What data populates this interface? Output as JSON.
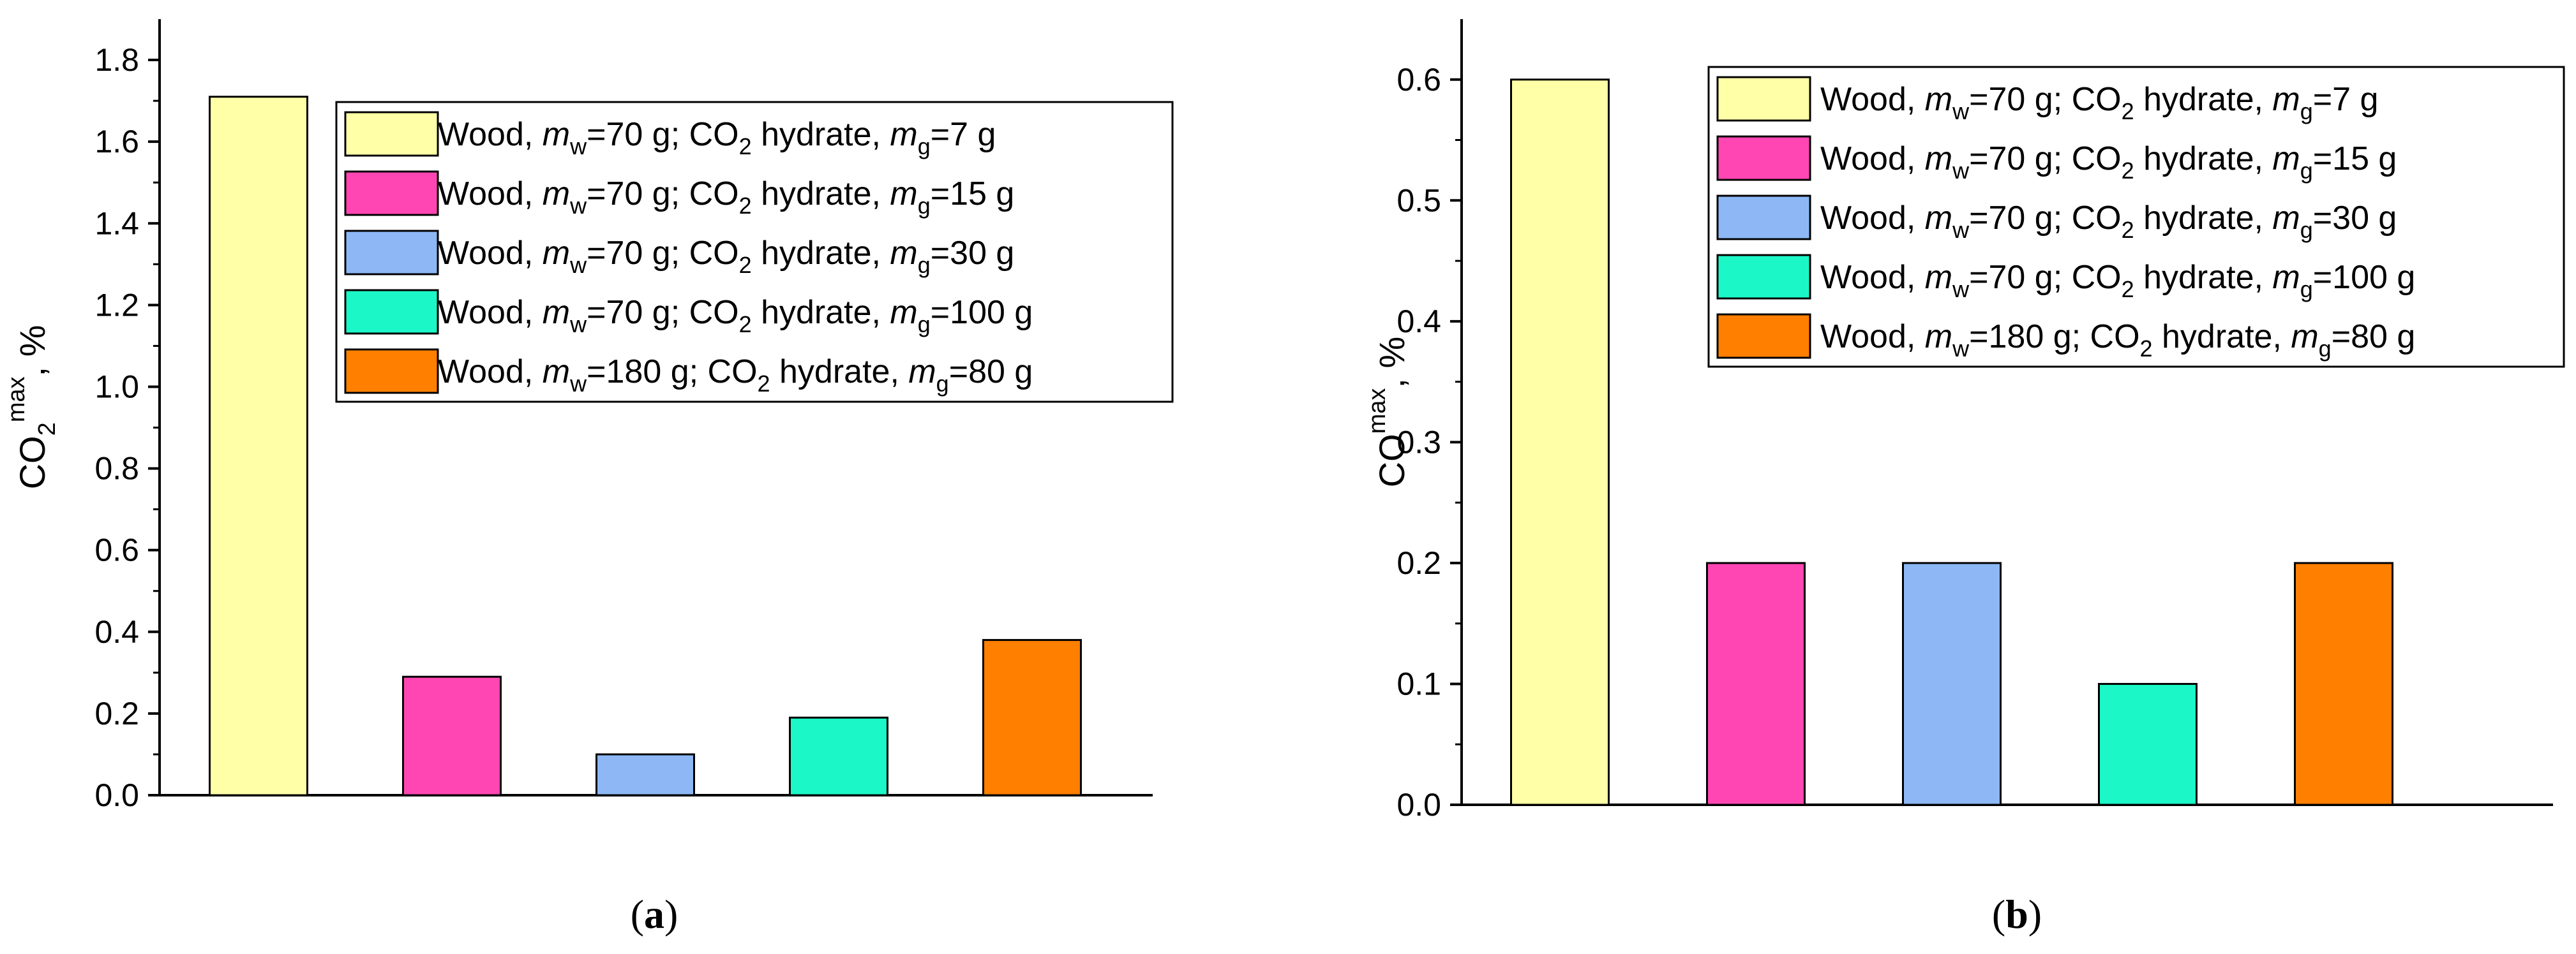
{
  "chart_data": [
    {
      "type": "bar",
      "panel_label": "a",
      "ylabel": {
        "base": "CO",
        "sub": "2",
        "sup": "max",
        "tail": ", %"
      },
      "ylim": [
        0,
        1.9
      ],
      "yticks": [
        0.0,
        0.2,
        0.4,
        0.6,
        0.8,
        1.0,
        1.2,
        1.4,
        1.6,
        1.8
      ],
      "ytick_labels": [
        "0.0",
        "0.2",
        "0.4",
        "0.6",
        "0.8",
        "1.0",
        "1.2",
        "1.4",
        "1.6",
        "1.8"
      ],
      "xlabel": "",
      "legend_position": "top-right",
      "series": [
        {
          "color": "#FFFFA8",
          "value": 1.71,
          "legend": {
            "pre": "Wood, ",
            "m1": "m",
            "s1": "w",
            "mid": "=70 g; CO",
            "s2": "2",
            "tail": " hydrate, ",
            "m2": "m",
            "s3": "g",
            "end": "=7 g"
          }
        },
        {
          "color": "#FF46B3",
          "value": 0.29,
          "legend": {
            "pre": "Wood, ",
            "m1": "m",
            "s1": "w",
            "mid": "=70 g; CO",
            "s2": "2",
            "tail": " hydrate, ",
            "m2": "m",
            "s3": "g",
            "end": "=15 g"
          }
        },
        {
          "color": "#8DB8F5",
          "value": 0.1,
          "legend": {
            "pre": "Wood, ",
            "m1": "m",
            "s1": "w",
            "mid": "=70 g; CO",
            "s2": "2",
            "tail": " hydrate, ",
            "m2": "m",
            "s3": "g",
            "end": "=30 g"
          }
        },
        {
          "color": "#1BF7C6",
          "value": 0.19,
          "legend": {
            "pre": "Wood, ",
            "m1": "m",
            "s1": "w",
            "mid": "=70 g; CO",
            "s2": "2",
            "tail": " hydrate, ",
            "m2": "m",
            "s3": "g",
            "end": "=100 g"
          }
        },
        {
          "color": "#FF7F00",
          "value": 0.38,
          "legend": {
            "pre": "Wood, ",
            "m1": "m",
            "s1": "w",
            "mid": "=180 g; CO",
            "s2": "2",
            "tail": " hydrate, ",
            "m2": "m",
            "s3": "g",
            "end": "=80 g"
          }
        }
      ]
    },
    {
      "type": "bar",
      "panel_label": "b",
      "ylabel": {
        "base": "CO",
        "sub": "",
        "sup": "max",
        "tail": ", %"
      },
      "ylim": [
        0,
        0.65
      ],
      "yticks": [
        0.0,
        0.1,
        0.2,
        0.3,
        0.4,
        0.5,
        0.6
      ],
      "ytick_labels": [
        "0.0",
        "0.1",
        "0.2",
        "0.3",
        "0.4",
        "0.5",
        "0.6"
      ],
      "xlabel": "",
      "legend_position": "top-right",
      "series": [
        {
          "color": "#FFFFA8",
          "value": 0.6,
          "legend": {
            "pre": "Wood, ",
            "m1": "m",
            "s1": "w",
            "mid": "=70 g; CO",
            "s2": "2",
            "tail": " hydrate, ",
            "m2": "m",
            "s3": "g",
            "end": "=7 g"
          }
        },
        {
          "color": "#FF46B3",
          "value": 0.2,
          "legend": {
            "pre": "Wood, ",
            "m1": "m",
            "s1": "w",
            "mid": "=70 g; CO",
            "s2": "2",
            "tail": " hydrate, ",
            "m2": "m",
            "s3": "g",
            "end": "=15 g"
          }
        },
        {
          "color": "#8DB8F5",
          "value": 0.2,
          "legend": {
            "pre": "Wood, ",
            "m1": "m",
            "s1": "w",
            "mid": "=70 g; CO",
            "s2": "2",
            "tail": " hydrate, ",
            "m2": "m",
            "s3": "g",
            "end": "=30 g"
          }
        },
        {
          "color": "#1BF7C6",
          "value": 0.1,
          "legend": {
            "pre": "Wood, ",
            "m1": "m",
            "s1": "w",
            "mid": "=70 g; CO",
            "s2": "2",
            "tail": " hydrate, ",
            "m2": "m",
            "s3": "g",
            "end": "=100 g"
          }
        },
        {
          "color": "#FF7F00",
          "value": 0.2,
          "legend": {
            "pre": "Wood, ",
            "m1": "m",
            "s1": "w",
            "mid": "=180 g; CO",
            "s2": "2",
            "tail": " hydrate, ",
            "m2": "m",
            "s3": "g",
            "end": "=80 g"
          }
        }
      ]
    }
  ]
}
